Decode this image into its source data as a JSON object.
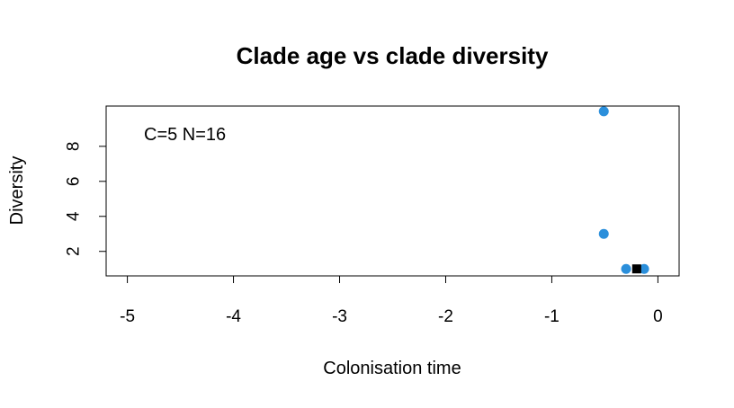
{
  "chart_data": {
    "type": "scatter",
    "title": "Clade age vs clade diversity",
    "xlabel": "Colonisation time",
    "ylabel": "Diversity",
    "annotation": "C=5 N=16",
    "xlim": [
      -5.2,
      0.2
    ],
    "ylim": [
      0.6,
      10.3
    ],
    "x_ticks": [
      -5,
      -4,
      -3,
      -2,
      -1,
      0
    ],
    "y_ticks": [
      2,
      4,
      6,
      8
    ],
    "x_tick_labels": [
      "-5",
      "-4",
      "-3",
      "-2",
      "-1",
      "0"
    ],
    "y_tick_labels": [
      "2",
      "4",
      "6",
      "8"
    ],
    "grid": false,
    "series": [
      {
        "marker": "circle",
        "color": "#2b8fdb",
        "points": [
          {
            "x": -0.51,
            "y": 10
          },
          {
            "x": -0.51,
            "y": 3
          },
          {
            "x": -0.3,
            "y": 1
          },
          {
            "x": -0.13,
            "y": 1
          }
        ]
      },
      {
        "marker": "square",
        "color": "#000000",
        "points": [
          {
            "x": -0.2,
            "y": 1
          }
        ]
      }
    ]
  }
}
